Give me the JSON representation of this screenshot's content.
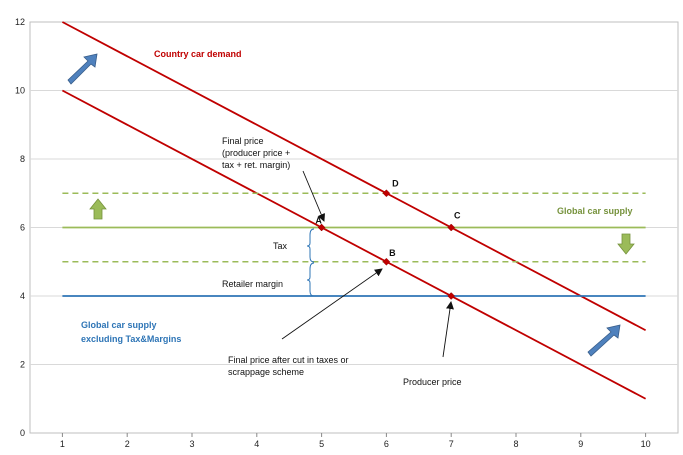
{
  "chart_data": {
    "type": "line",
    "x": [
      1,
      2,
      3,
      4,
      5,
      6,
      7,
      8,
      9,
      10
    ],
    "xlim": [
      0.5,
      10.5
    ],
    "ylim": [
      0,
      12
    ],
    "yticks": [
      0,
      2,
      4,
      6,
      8,
      10,
      12
    ],
    "xticks": [
      1,
      2,
      3,
      4,
      5,
      6,
      7,
      8,
      9,
      10
    ],
    "grid": "horizontal",
    "series": [
      {
        "key": "demand_high",
        "x": [
          1,
          10
        ],
        "values": [
          12,
          3
        ],
        "color": "#c00000",
        "style": "solid"
      },
      {
        "key": "demand_low",
        "x": [
          1,
          10
        ],
        "values": [
          10,
          1
        ],
        "color": "#c00000",
        "style": "solid"
      },
      {
        "key": "supply_upper",
        "x": [
          1,
          10
        ],
        "values": [
          7,
          7
        ],
        "color": "#9bbb59",
        "style": "dashed"
      },
      {
        "key": "supply",
        "x": [
          1,
          10
        ],
        "values": [
          6,
          6
        ],
        "color": "#9bbb59",
        "style": "solid"
      },
      {
        "key": "supply_lower",
        "x": [
          1,
          10
        ],
        "values": [
          5,
          5
        ],
        "color": "#9bbb59",
        "style": "dashed"
      },
      {
        "key": "supply_ex_tax",
        "x": [
          1,
          10
        ],
        "values": [
          4,
          4
        ],
        "color": "#2e75b6",
        "style": "solid"
      }
    ],
    "points": [
      {
        "label": "A",
        "x": 5,
        "y": 6
      },
      {
        "label": "B",
        "x": 6,
        "y": 5
      },
      {
        "label": "C",
        "x": 7,
        "y": 6
      },
      {
        "label": "D",
        "x": 6,
        "y": 7
      },
      {
        "label": "",
        "x": 7,
        "y": 4
      }
    ],
    "annotations": {
      "country_demand": "Country car demand",
      "global_supply": "Global  car supply",
      "global_supply_ex_1": "Global  car supply",
      "global_supply_ex_2": "excluding Tax&Margins",
      "final_price_1": "Final price",
      "final_price_2": "(producer price +",
      "final_price_3": "tax + ret. margin)",
      "tax": "Tax",
      "retailer_margin": "Retailer margin",
      "final_after_cut_1": "Final price after cut in taxes or",
      "final_after_cut_2": "scrappage scheme",
      "producer_price": "Producer price"
    },
    "colors": {
      "demand": "#c00000",
      "supply": "#9bbb59",
      "supply_ex": "#2e75b6",
      "arrow_blue": "#4f81bd",
      "arrow_green": "#9bbb59",
      "grid": "#d9d9d9"
    }
  }
}
